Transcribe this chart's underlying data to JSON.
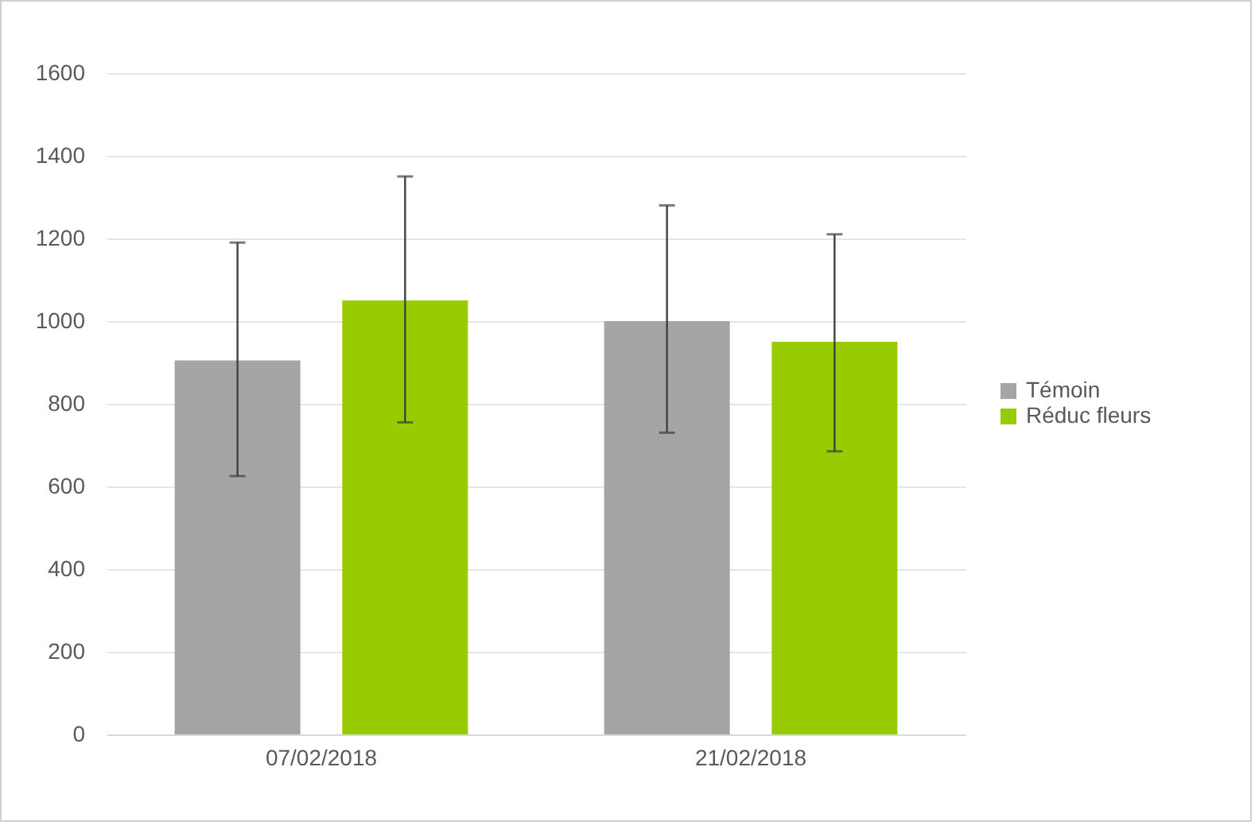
{
  "chart_data": {
    "type": "bar",
    "categories": [
      "07/02/2018",
      "21/02/2018"
    ],
    "series": [
      {
        "name": "Témoin",
        "color": "#a5a5a5",
        "values": [
          905,
          1000
        ],
        "errors": [
          [
            625,
            1190
          ],
          [
            730,
            1280
          ]
        ]
      },
      {
        "name": "Réduc fleurs",
        "color": "#99cc00",
        "values": [
          1050,
          950
        ],
        "errors": [
          [
            755,
            1350
          ],
          [
            685,
            1210
          ]
        ]
      }
    ],
    "ylim": [
      0,
      1600
    ],
    "yticks": [
      0,
      200,
      400,
      600,
      800,
      1000,
      1200,
      1400,
      1600
    ],
    "grid": "y",
    "legend": "right"
  }
}
